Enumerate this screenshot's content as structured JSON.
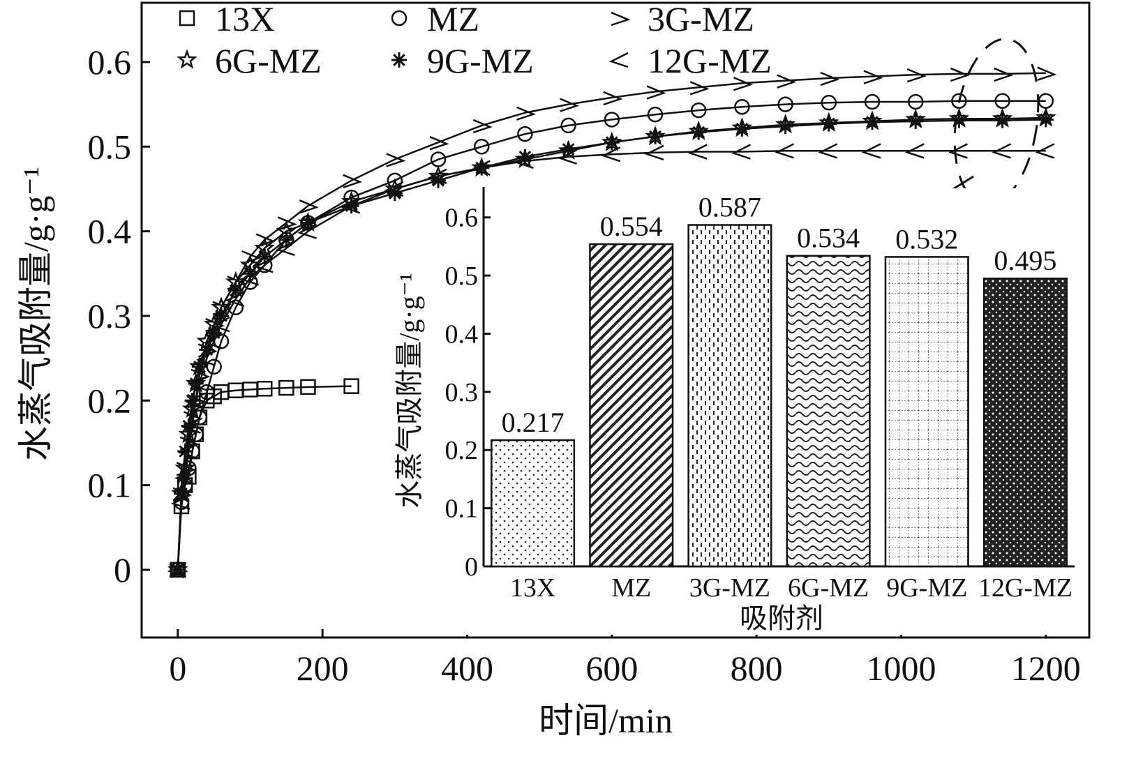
{
  "chart_data": [
    {
      "type": "line",
      "title": "",
      "xlabel": "时间/min",
      "ylabel": "水蒸气吸附量/g·g⁻¹",
      "xlim": [
        -50,
        1260
      ],
      "ylim": [
        -0.08,
        0.67
      ],
      "x_ticks": [
        "0",
        "200",
        "400",
        "600",
        "800",
        "1000",
        "1200"
      ],
      "y_ticks": [
        "0",
        "0.1",
        "0.2",
        "0.3",
        "0.4",
        "0.5",
        "0.6"
      ],
      "x_tick_values": [
        0,
        200,
        400,
        600,
        800,
        1000,
        1200
      ],
      "y_tick_values": [
        0,
        0.1,
        0.2,
        0.3,
        0.4,
        0.5,
        0.6
      ],
      "grid": false,
      "legend_position": "top-left",
      "series": [
        {
          "name": "13X",
          "marker": "square",
          "x": [
            0,
            5,
            10,
            15,
            20,
            25,
            30,
            40,
            50,
            60,
            80,
            100,
            120,
            150,
            180,
            240
          ],
          "y": [
            0,
            0.075,
            0.1,
            0.11,
            0.14,
            0.16,
            0.18,
            0.2,
            0.205,
            0.21,
            0.212,
            0.213,
            0.214,
            0.215,
            0.216,
            0.217
          ]
        },
        {
          "name": "MZ",
          "marker": "circle",
          "x": [
            0,
            5,
            10,
            15,
            20,
            25,
            30,
            40,
            50,
            60,
            80,
            100,
            120,
            150,
            180,
            240,
            300,
            360,
            420,
            480,
            540,
            600,
            660,
            720,
            780,
            840,
            900,
            960,
            1020,
            1080,
            1140,
            1200
          ],
          "y": [
            0,
            0.08,
            0.1,
            0.12,
            0.14,
            0.16,
            0.18,
            0.21,
            0.24,
            0.27,
            0.31,
            0.34,
            0.36,
            0.39,
            0.41,
            0.44,
            0.46,
            0.485,
            0.5,
            0.515,
            0.525,
            0.532,
            0.538,
            0.543,
            0.547,
            0.55,
            0.552,
            0.553,
            0.553,
            0.554,
            0.554,
            0.554
          ]
        },
        {
          "name": "3G-MZ",
          "marker": "tri-right",
          "x": [
            0,
            5,
            10,
            15,
            20,
            25,
            30,
            40,
            50,
            60,
            80,
            100,
            120,
            150,
            180,
            240,
            300,
            360,
            420,
            480,
            540,
            600,
            660,
            720,
            780,
            840,
            900,
            960,
            1020,
            1080,
            1140,
            1200
          ],
          "y": [
            0,
            0.09,
            0.12,
            0.15,
            0.18,
            0.2,
            0.23,
            0.26,
            0.29,
            0.31,
            0.34,
            0.37,
            0.39,
            0.41,
            0.43,
            0.46,
            0.485,
            0.505,
            0.525,
            0.54,
            0.55,
            0.558,
            0.565,
            0.57,
            0.575,
            0.578,
            0.581,
            0.583,
            0.585,
            0.586,
            0.586,
            0.587
          ]
        },
        {
          "name": "6G-MZ",
          "marker": "star",
          "x": [
            0,
            5,
            10,
            15,
            20,
            25,
            30,
            40,
            50,
            60,
            80,
            100,
            120,
            150,
            180,
            240,
            300,
            360,
            420,
            480,
            540,
            600,
            660,
            720,
            780,
            840,
            900,
            960,
            1020,
            1080,
            1140,
            1200
          ],
          "y": [
            0,
            0.09,
            0.12,
            0.16,
            0.19,
            0.22,
            0.24,
            0.27,
            0.29,
            0.31,
            0.34,
            0.36,
            0.38,
            0.4,
            0.41,
            0.435,
            0.45,
            0.465,
            0.475,
            0.485,
            0.495,
            0.505,
            0.512,
            0.518,
            0.522,
            0.526,
            0.528,
            0.53,
            0.532,
            0.533,
            0.533,
            0.534
          ]
        },
        {
          "name": "9G-MZ",
          "marker": "asterisk",
          "x": [
            0,
            5,
            10,
            15,
            20,
            25,
            30,
            40,
            50,
            60,
            80,
            100,
            120,
            150,
            180,
            240,
            300,
            360,
            420,
            480,
            540,
            600,
            660,
            720,
            780,
            840,
            900,
            960,
            1020,
            1080,
            1140,
            1200
          ],
          "y": [
            0,
            0.09,
            0.14,
            0.17,
            0.2,
            0.22,
            0.24,
            0.26,
            0.28,
            0.3,
            0.33,
            0.35,
            0.37,
            0.39,
            0.41,
            0.43,
            0.445,
            0.46,
            0.475,
            0.488,
            0.497,
            0.505,
            0.512,
            0.517,
            0.521,
            0.524,
            0.527,
            0.529,
            0.53,
            0.531,
            0.531,
            0.532
          ]
        },
        {
          "name": "12G-MZ",
          "marker": "tri-left",
          "x": [
            0,
            5,
            10,
            15,
            20,
            25,
            30,
            40,
            50,
            60,
            80,
            100,
            120,
            150,
            180,
            240,
            300,
            360,
            420,
            480,
            540,
            600,
            660,
            720,
            780,
            840,
            900,
            960,
            1020,
            1080,
            1140,
            1200
          ],
          "y": [
            0,
            0.08,
            0.11,
            0.14,
            0.17,
            0.2,
            0.22,
            0.25,
            0.27,
            0.29,
            0.32,
            0.345,
            0.36,
            0.38,
            0.4,
            0.43,
            0.45,
            0.465,
            0.475,
            0.483,
            0.488,
            0.491,
            0.493,
            0.494,
            0.494,
            0.495,
            0.495,
            0.495,
            0.495,
            0.495,
            0.495,
            0.495
          ]
        }
      ]
    },
    {
      "type": "bar",
      "title": "",
      "xlabel": "吸附剂",
      "ylabel": "水蒸气吸附量/g·g⁻¹",
      "ylim": [
        0,
        0.65
      ],
      "y_ticks": [
        "0",
        "0.1",
        "0.2",
        "0.3",
        "0.4",
        "0.5",
        "0.6"
      ],
      "y_tick_values": [
        0,
        0.1,
        0.2,
        0.3,
        0.4,
        0.5,
        0.6
      ],
      "categories": [
        "13X",
        "MZ",
        "3G-MZ",
        "6G-MZ",
        "9G-MZ",
        "12G-MZ"
      ],
      "values": [
        0.217,
        0.554,
        0.587,
        0.534,
        0.532,
        0.495
      ],
      "value_labels": [
        "0.217",
        "0.554",
        "0.587",
        "0.534",
        "0.532",
        "0.495"
      ],
      "bar_patterns": [
        "dots",
        "diagonal",
        "dashed-vertical",
        "wavy",
        "grid",
        "dense-dots"
      ]
    }
  ]
}
